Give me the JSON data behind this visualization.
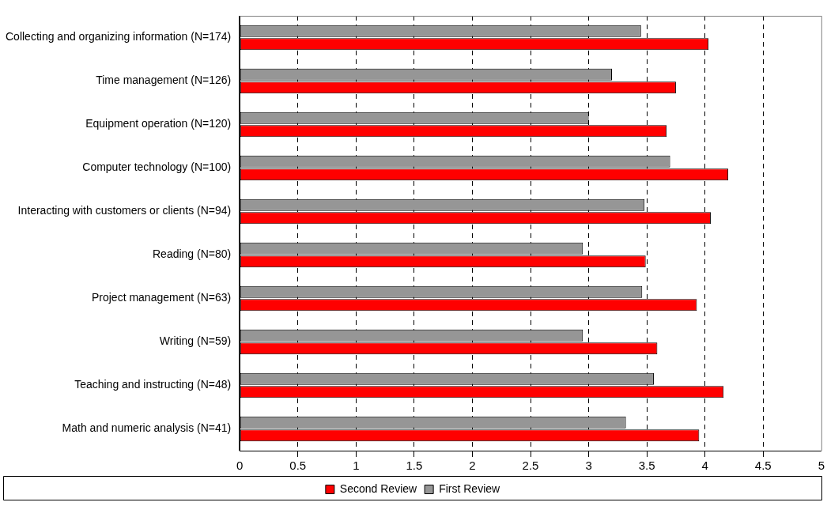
{
  "chart_data": {
    "type": "bar",
    "orientation": "horizontal",
    "categories": [
      "Collecting and organizing information (N=174)",
      "Time management (N=126)",
      "Equipment operation (N=120)",
      "Computer technology (N=100)",
      "Interacting with customers or clients (N=94)",
      "Reading (N=80)",
      "Project management (N=63)",
      "Writing (N=59)",
      "Teaching and instructing (N=48)",
      "Math and numeric analysis (N=41)"
    ],
    "series": [
      {
        "name": "First Review",
        "color": "#969696",
        "values": [
          3.45,
          3.2,
          3.0,
          3.7,
          3.48,
          2.95,
          3.46,
          2.95,
          3.56,
          3.32
        ]
      },
      {
        "name": "Second Review",
        "color": "#ff0000",
        "values": [
          4.03,
          3.75,
          3.67,
          4.2,
          4.05,
          3.49,
          3.93,
          3.59,
          4.16,
          3.95
        ]
      }
    ],
    "xlim": [
      0,
      5
    ],
    "xticks": [
      0,
      0.5,
      1,
      1.5,
      2,
      2.5,
      3,
      3.5,
      4,
      4.5,
      5
    ],
    "grid": "x",
    "legend": "bottom"
  }
}
